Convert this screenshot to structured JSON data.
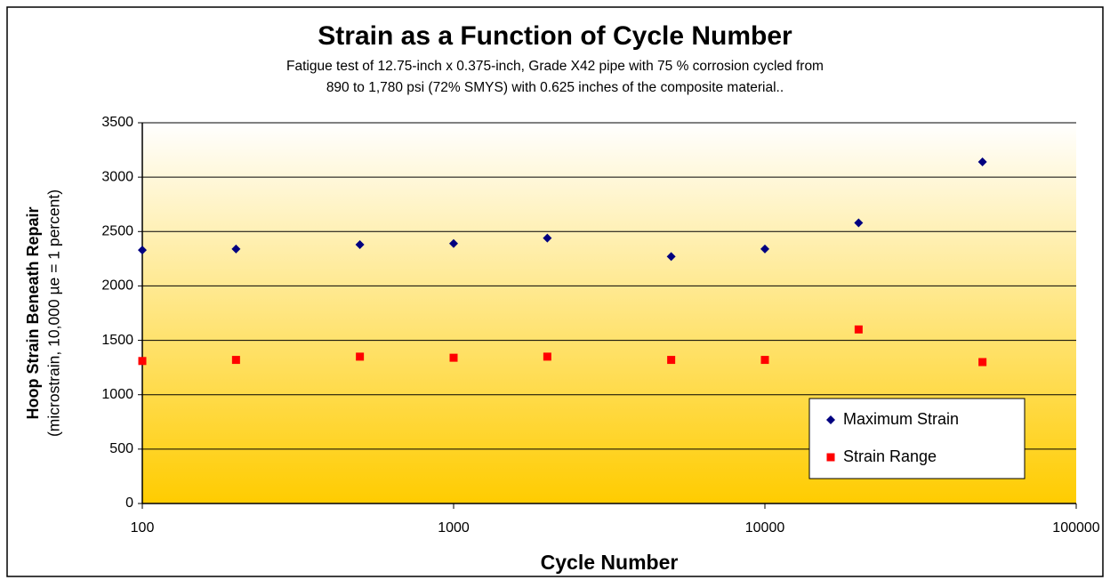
{
  "chart_data": {
    "type": "scatter",
    "title": "Strain as a Function of Cycle Number",
    "subtitle": [
      "Fatigue test of 12.75-inch x 0.375-inch, Grade X42 pipe with 75 % corrosion cycled from",
      "890 to 1,780 psi (72% SMYS) with 0.625 inches of the composite material.."
    ],
    "x_label": "Cycle Number",
    "y_label": "Hoop Strain Beneath Repair",
    "y_label_sub": "(microstrain, 10,000 µe = 1 percent)",
    "xscale": "log",
    "xlim": [
      100,
      100000
    ],
    "xticks": [
      100,
      1000,
      10000,
      100000
    ],
    "ylim": [
      0,
      3500
    ],
    "yticks": [
      0,
      500,
      1000,
      1500,
      2000,
      2500,
      3000,
      3500
    ],
    "grid": true,
    "legend": "lower right",
    "x": [
      100,
      200,
      500,
      1000,
      2000,
      5000,
      10000,
      20000,
      50000
    ],
    "series": [
      {
        "name": "Maximum Strain",
        "color": "#000080",
        "marker": "diamond",
        "values": [
          2330,
          2340,
          2380,
          2390,
          2440,
          2270,
          2340,
          2580,
          3140
        ]
      },
      {
        "name": "Strain Range",
        "color": "#ff0000",
        "marker": "square",
        "values": [
          1310,
          1320,
          1350,
          1340,
          1350,
          1320,
          1320,
          1600,
          1300
        ]
      }
    ]
  }
}
